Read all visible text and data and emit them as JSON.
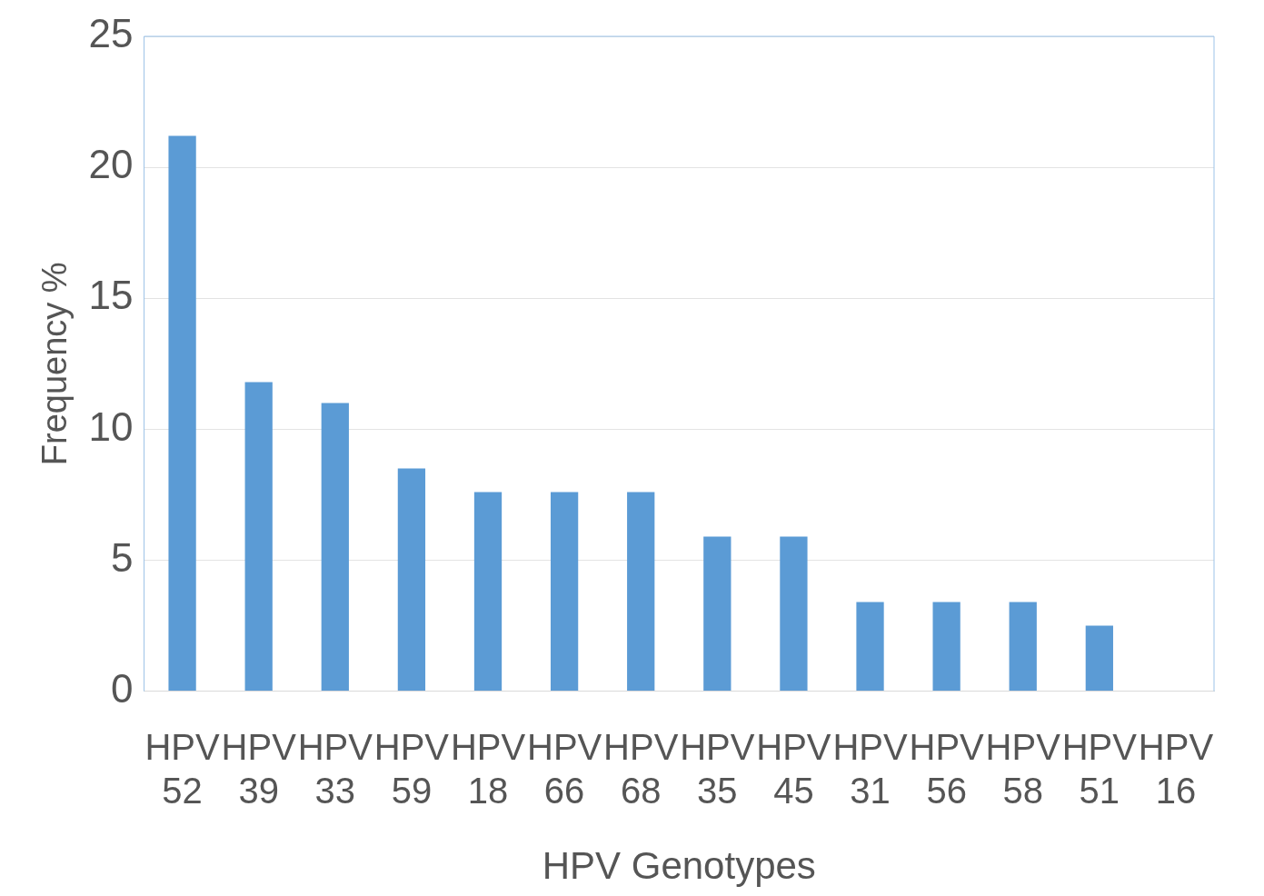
{
  "chart_data": {
    "type": "bar",
    "xlabel": "HPV Genotypes",
    "ylabel": "Frequency %",
    "categories": [
      "HPV 52",
      "HPV 39",
      "HPV 33",
      "HPV 59",
      "HPV 18",
      "HPV 66",
      "HPV 68",
      "HPV 35",
      "HPV 45",
      "HPV 31",
      "HPV 56",
      "HPV 58",
      "HPV 51",
      "HPV 16"
    ],
    "values": [
      21.2,
      11.8,
      11.0,
      8.5,
      7.6,
      7.6,
      7.6,
      5.9,
      5.9,
      3.4,
      3.4,
      3.4,
      2.5,
      0
    ],
    "color": "#5b9bd5",
    "ylim": [
      0,
      25
    ],
    "yticks": [
      0,
      5,
      10,
      15,
      20,
      25
    ],
    "grid": "y"
  }
}
